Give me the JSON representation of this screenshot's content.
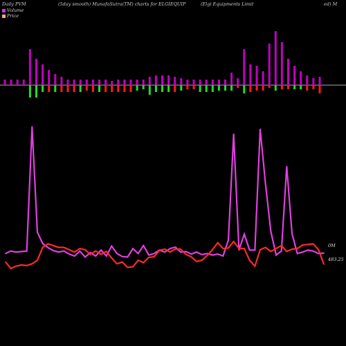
{
  "header": {
    "title": "Daily PVM",
    "source": "(5day smooth) MunafaSutra(TM) charts for ELGIEQUIP",
    "company": "(Elgi  Equipments Limit",
    "company_tail": "ed) M"
  },
  "chart_data": {
    "type": "line",
    "title": "",
    "xlabel": "",
    "ylabel": "",
    "legend": [
      {
        "label": "Volume",
        "color": "#c23ad9"
      },
      {
        "label": "Price",
        "color": "#f0b070"
      }
    ],
    "right_labels": {
      "volume": "0M",
      "price": "483.25"
    },
    "colors": {
      "up": "#c200c2",
      "down_red": "#ff1a1a",
      "down_green": "#22dd22",
      "volume_line": "#e040e0",
      "price_line": "#ff2a2a",
      "bar_base": "#ff3030"
    },
    "bar_series": {
      "name": "",
      "up_values": [
        8,
        8,
        8,
        8,
        52,
        38,
        30,
        22,
        16,
        12,
        8,
        8,
        8,
        8,
        8,
        8,
        8,
        6,
        8,
        8,
        8,
        8,
        8,
        12,
        14,
        14,
        14,
        12,
        10,
        8,
        8,
        8,
        8,
        8,
        8,
        8,
        18,
        10,
        52,
        30,
        28,
        20,
        60,
        78,
        62,
        38,
        28,
        20,
        14,
        10,
        12
      ],
      "down_values": [
        0,
        0,
        0,
        0,
        18,
        18,
        10,
        10,
        10,
        10,
        10,
        10,
        10,
        8,
        10,
        10,
        10,
        10,
        10,
        10,
        10,
        8,
        6,
        14,
        10,
        10,
        10,
        10,
        8,
        6,
        6,
        10,
        10,
        10,
        8,
        8,
        8,
        4,
        12,
        10,
        8,
        8,
        4,
        8,
        6,
        6,
        6,
        6,
        8,
        6,
        12
      ],
      "down_color": [
        "red",
        "red",
        "red",
        "red",
        "green",
        "green",
        "green",
        "red",
        "green",
        "red",
        "red",
        "red",
        "green",
        "red",
        "red",
        "green",
        "red",
        "red",
        "red",
        "red",
        "red",
        "green",
        "green",
        "green",
        "green",
        "green",
        "green",
        "red",
        "green",
        "red",
        "red",
        "green",
        "green",
        "green",
        "green",
        "green",
        "green",
        "red",
        "green",
        "red",
        "red",
        "red",
        "red",
        "green",
        "red",
        "red",
        "green",
        "green",
        "red",
        "red",
        "red"
      ]
    },
    "series": [
      {
        "values": [
          0.35,
          0.4,
          0.38,
          0.39,
          0.4,
          2.9,
          0.78,
          0.55,
          0.47,
          0.41,
          0.38,
          0.4,
          0.34,
          0.3,
          0.4,
          0.28,
          0.37,
          0.3,
          0.42,
          0.3,
          0.5,
          0.35,
          0.29,
          0.28,
          0.45,
          0.35,
          0.51,
          0.32,
          0.35,
          0.42,
          0.38,
          0.45,
          0.48,
          0.38,
          0.39,
          0.34,
          0.38,
          0.33,
          0.35,
          0.32,
          0.34,
          0.3,
          0.62,
          2.75,
          0.42,
          0.74,
          0.42,
          0.42,
          2.85,
          1.75,
          0.8,
          0.32,
          0.4,
          2.1,
          0.75,
          0.35,
          0.38,
          0.42,
          0.4,
          0.35,
          0.36
        ]
      },
      {
        "values": [
          487,
          476,
          480,
          482,
          481,
          484,
          490,
          512,
          518,
          515,
          512,
          512,
          508,
          504,
          510,
          508,
          500,
          506,
          500,
          505,
          494,
          484,
          487,
          478,
          479,
          490,
          486,
          495,
          496,
          507,
          509,
          504,
          509,
          509,
          500,
          496,
          488,
          490,
          498,
          508,
          520,
          510,
          511,
          522,
          510,
          510,
          490,
          480,
          508,
          512,
          505,
          510,
          515,
          505,
          509,
          510,
          516,
          517,
          518,
          508,
          483.25
        ]
      }
    ]
  }
}
